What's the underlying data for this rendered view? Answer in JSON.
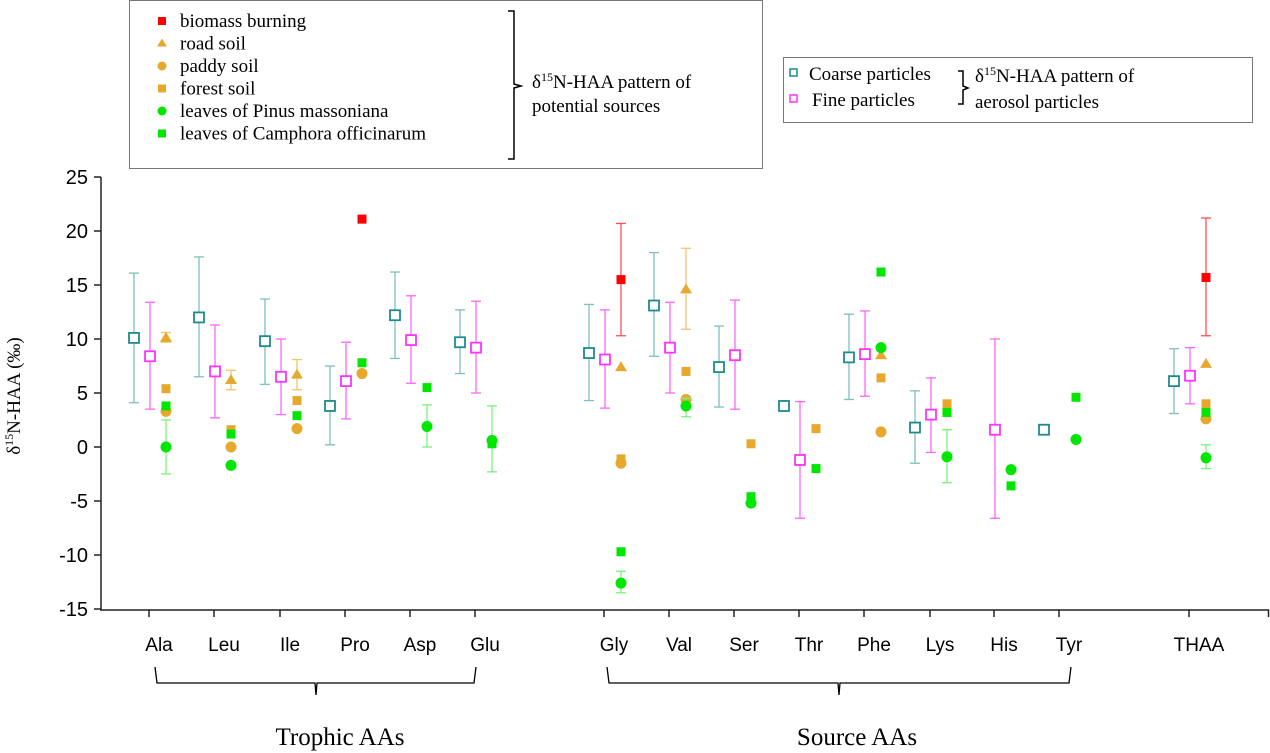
{
  "chart_data": {
    "type": "scatter",
    "title": "",
    "ylabel": "δ15N-HAA (‰)",
    "ylabel_parts": {
      "prefix": "δ",
      "sup": "15",
      "rest": "N-HAA (‰)"
    },
    "xlabel": "",
    "ylim": [
      -15,
      25
    ],
    "yticks": [
      -15,
      -10,
      -5,
      0,
      5,
      10,
      15,
      20,
      25
    ],
    "grid": false,
    "categories": [
      "Ala",
      "Leu",
      "Ile",
      "Pro",
      "Asp",
      "Glu",
      "Gly",
      "Val",
      "Ser",
      "Thr",
      "Phe",
      "Lys",
      "His",
      "Tyr",
      "THAA"
    ],
    "groups": [
      {
        "label": "Trophic AAs",
        "from": "Ala",
        "to": "Glu"
      },
      {
        "label": "Source AAs",
        "from": "Gly",
        "to": "Tyr"
      }
    ],
    "legend_sources": {
      "title": "δ15N-HAA pattern of potential sources",
      "title_parts": {
        "prefix": "δ",
        "sup": "15",
        "line1_rest": "N-HAA pattern of",
        "line2": "potential sources"
      },
      "placement": "top-left",
      "entries": [
        "biomass burning",
        "road soil",
        "paddy soil",
        "forest soil",
        "leaves of Pinus massoniana",
        "leaves of Camphora officinarum"
      ]
    },
    "legend_aerosol": {
      "title": "δ15N-HAA pattern of aerosol particles",
      "title_parts": {
        "prefix": "δ",
        "sup": "15",
        "line1_rest": "N-HAA pattern of",
        "line2": "aerosol particles"
      },
      "placement": "top-right",
      "entries": [
        "Coarse particles",
        "Fine particles"
      ]
    },
    "series": [
      {
        "name": "Coarse particles",
        "marker": "open-square",
        "color": "#1f8a8a",
        "errcolor": "#7fbfbf",
        "values": [
          10.1,
          12.0,
          9.8,
          3.8,
          12.2,
          9.7,
          8.7,
          13.1,
          7.4,
          3.8,
          8.3,
          1.8,
          null,
          1.6,
          6.1
        ],
        "err_hi": [
          16.1,
          17.6,
          13.7,
          7.5,
          16.2,
          12.7,
          13.2,
          18.0,
          11.2,
          null,
          12.3,
          5.2,
          null,
          null,
          9.1
        ],
        "err_lo": [
          4.1,
          6.5,
          5.8,
          0.2,
          8.2,
          6.8,
          4.3,
          8.4,
          3.7,
          null,
          4.4,
          -1.5,
          null,
          null,
          3.1
        ]
      },
      {
        "name": "Fine particles",
        "marker": "open-square",
        "color": "#ff33ff",
        "errcolor": "#ff66ff",
        "values": [
          8.4,
          7.0,
          6.5,
          6.1,
          9.9,
          9.2,
          8.1,
          9.2,
          8.5,
          -1.2,
          8.6,
          3.0,
          1.6,
          null,
          6.6
        ],
        "err_hi": [
          13.4,
          11.3,
          10.0,
          9.7,
          14.0,
          13.5,
          12.7,
          13.4,
          13.6,
          4.2,
          12.6,
          6.4,
          10.0,
          null,
          9.2
        ],
        "err_lo": [
          3.5,
          2.7,
          3.0,
          2.6,
          5.9,
          5.0,
          3.6,
          5.0,
          3.5,
          -6.6,
          4.7,
          -0.5,
          -6.6,
          null,
          4.0
        ]
      },
      {
        "name": "biomass burning",
        "marker": "filled-square",
        "color": "#ff0000",
        "errcolor": "#ff5050",
        "values": [
          null,
          null,
          null,
          21.1,
          null,
          null,
          15.5,
          null,
          null,
          null,
          null,
          null,
          null,
          null,
          15.7
        ],
        "err_hi": [
          null,
          null,
          null,
          null,
          null,
          null,
          20.7,
          null,
          null,
          null,
          null,
          null,
          null,
          null,
          21.2
        ],
        "err_lo": [
          null,
          null,
          null,
          null,
          null,
          null,
          10.3,
          null,
          null,
          null,
          null,
          null,
          null,
          null,
          10.3
        ]
      },
      {
        "name": "road soil",
        "marker": "filled-triangle",
        "color": "#e6a92e",
        "errcolor": "#efc56d",
        "values": [
          10.1,
          6.2,
          6.7,
          null,
          null,
          null,
          7.4,
          14.6,
          null,
          null,
          8.5,
          null,
          null,
          null,
          7.7
        ],
        "err_hi": [
          10.6,
          7.1,
          8.1,
          null,
          null,
          null,
          null,
          18.4,
          null,
          null,
          null,
          null,
          null,
          null,
          null
        ],
        "err_lo": [
          9.7,
          5.3,
          5.3,
          null,
          null,
          null,
          null,
          10.9,
          null,
          null,
          null,
          null,
          null,
          null,
          null
        ]
      },
      {
        "name": "paddy soil",
        "marker": "filled-circle",
        "color": "#e6a92e",
        "errcolor": "#efc56d",
        "values": [
          3.3,
          0.0,
          1.7,
          6.8,
          null,
          null,
          -1.5,
          4.4,
          null,
          null,
          1.4,
          null,
          null,
          null,
          2.6
        ],
        "err_hi": [
          null,
          null,
          null,
          null,
          null,
          null,
          null,
          null,
          null,
          null,
          null,
          null,
          null,
          null,
          null
        ],
        "err_lo": [
          null,
          null,
          null,
          null,
          null,
          null,
          null,
          null,
          null,
          null,
          null,
          null,
          null,
          null,
          null
        ]
      },
      {
        "name": "forest soil",
        "marker": "filled-square",
        "color": "#e6a92e",
        "errcolor": "#efc56d",
        "values": [
          5.4,
          1.6,
          4.3,
          null,
          null,
          null,
          -1.1,
          7.0,
          0.3,
          1.7,
          6.4,
          4.0,
          null,
          null,
          4.0
        ],
        "err_hi": [
          null,
          null,
          null,
          null,
          null,
          null,
          null,
          null,
          null,
          null,
          null,
          null,
          null,
          null,
          null
        ],
        "err_lo": [
          null,
          null,
          null,
          null,
          null,
          null,
          null,
          null,
          null,
          null,
          null,
          null,
          null,
          null,
          null
        ]
      },
      {
        "name": "leaves of Pinus massoniana",
        "marker": "filled-circle",
        "color": "#00e600",
        "errcolor": "#7cf07c",
        "values": [
          0.0,
          -1.7,
          null,
          null,
          1.9,
          0.6,
          -12.6,
          3.8,
          -5.2,
          null,
          9.2,
          -0.9,
          -2.1,
          0.7,
          -1.0
        ],
        "err_hi": [
          2.5,
          null,
          null,
          null,
          3.9,
          3.8,
          -11.5,
          4.5,
          null,
          null,
          null,
          1.6,
          null,
          null,
          0.2
        ],
        "err_lo": [
          -2.5,
          -4.3,
          null,
          null,
          0.0,
          -2.3,
          -13.5,
          2.8,
          null,
          null,
          null,
          -3.3,
          null,
          null,
          -2.0
        ]
      },
      {
        "name": "leaves of Camphora officinarum",
        "marker": "filled-square",
        "color": "#00e600",
        "errcolor": "#7cf07c",
        "values": [
          3.8,
          1.2,
          2.9,
          7.8,
          5.5,
          0.3,
          -9.7,
          null,
          -4.6,
          -2.0,
          16.2,
          3.2,
          -3.6,
          4.6,
          3.2
        ],
        "err_hi": [
          null,
          null,
          null,
          null,
          null,
          null,
          null,
          null,
          null,
          null,
          null,
          null,
          null,
          null,
          null
        ],
        "err_lo": [
          null,
          null,
          null,
          null,
          null,
          null,
          null,
          null,
          null,
          null,
          null,
          null,
          null,
          null,
          null
        ]
      }
    ]
  }
}
